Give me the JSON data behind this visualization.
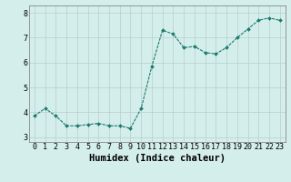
{
  "x": [
    0,
    1,
    2,
    3,
    4,
    5,
    6,
    7,
    8,
    9,
    10,
    11,
    12,
    13,
    14,
    15,
    16,
    17,
    18,
    19,
    20,
    21,
    22,
    23
  ],
  "y": [
    3.85,
    4.15,
    3.85,
    3.45,
    3.45,
    3.5,
    3.55,
    3.45,
    3.45,
    3.35,
    4.15,
    5.85,
    7.3,
    7.15,
    6.6,
    6.65,
    6.4,
    6.35,
    6.6,
    7.0,
    7.35,
    7.7,
    7.8,
    7.7
  ],
  "xlabel": "Humidex (Indice chaleur)",
  "ylim": [
    2.8,
    8.3
  ],
  "xlim": [
    -0.5,
    23.5
  ],
  "yticks": [
    3,
    4,
    5,
    6,
    7,
    8
  ],
  "xticks": [
    0,
    1,
    2,
    3,
    4,
    5,
    6,
    7,
    8,
    9,
    10,
    11,
    12,
    13,
    14,
    15,
    16,
    17,
    18,
    19,
    20,
    21,
    22,
    23
  ],
  "line_color": "#1a7a6e",
  "marker": "D",
  "marker_size": 2.0,
  "bg_color": "#d4eeeb",
  "grid_color": "#b8cece",
  "tick_label_fontsize": 6.0,
  "xlabel_fontsize": 7.5,
  "line_width": 0.8
}
